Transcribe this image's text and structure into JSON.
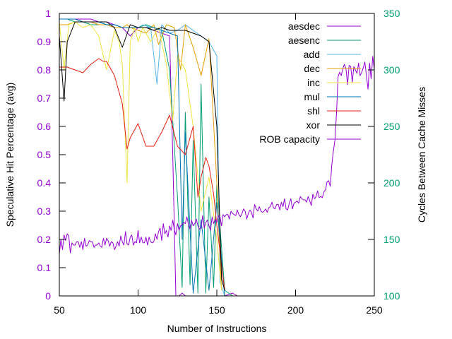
{
  "chart_data": {
    "type": "line",
    "xlabel": "Number of Instructions",
    "ylabel": "Speculative Hit Percentage (avg)",
    "y2label": "Cycles Between Cache Misses",
    "xlim": [
      50,
      250
    ],
    "ylim": [
      0,
      1
    ],
    "y2lim": [
      100,
      350
    ],
    "xticks": [
      "50",
      "100",
      "150",
      "200",
      "250"
    ],
    "yticks": [
      "0",
      "0.1",
      "0.2",
      "0.3",
      "0.4",
      "0.5",
      "0.6",
      "0.7",
      "0.8",
      "0.9",
      "1"
    ],
    "y2ticks": [
      "100",
      "150",
      "200",
      "250",
      "300",
      "350"
    ],
    "grid": false,
    "legend_position": "top-right",
    "axis_colors": {
      "left": "#9400d3",
      "right": "#009e73",
      "bottom": "#000000"
    },
    "series": [
      {
        "name": "aesdec",
        "color": "#9400d3",
        "axis": "left",
        "x": [
          50,
          55,
          60,
          65,
          70,
          75,
          80,
          85,
          90,
          95,
          100,
          105,
          110,
          115,
          120,
          122,
          124,
          126,
          128,
          130,
          135,
          140,
          145,
          150,
          155,
          160,
          163
        ],
        "y": [
          0.98,
          0.98,
          0.98,
          0.98,
          0.98,
          0.97,
          0.97,
          0.96,
          0.95,
          0.92,
          0.95,
          0.95,
          0.94,
          0.93,
          0.92,
          0.5,
          0.0,
          0.0,
          0.01,
          0.0,
          0.0,
          0.0,
          0.0,
          0.0,
          0.0,
          0.01,
          0.0
        ]
      },
      {
        "name": "aesenc",
        "color": "#009e73",
        "axis": "left",
        "x": [
          50,
          55,
          60,
          65,
          70,
          75,
          80,
          85,
          90,
          95,
          100,
          105,
          110,
          115,
          120,
          125,
          128,
          130,
          133,
          135,
          138,
          140,
          143,
          145,
          148,
          150,
          155,
          160
        ],
        "y": [
          0.98,
          0.98,
          0.97,
          0.97,
          0.96,
          0.96,
          0.96,
          0.95,
          0.95,
          0.95,
          0.95,
          0.96,
          0.95,
          0.94,
          0.8,
          0.35,
          0.03,
          0.65,
          0.04,
          0.55,
          0.01,
          0.75,
          0.01,
          0.35,
          0.03,
          0.4,
          0.02,
          0.0
        ]
      },
      {
        "name": "add",
        "color": "#56b4e9",
        "axis": "left",
        "x": [
          50,
          55,
          60,
          65,
          70,
          75,
          80,
          85,
          90,
          95,
          100,
          103,
          108,
          112,
          115,
          120,
          125,
          130,
          135,
          140,
          145,
          150,
          152,
          155
        ],
        "y": [
          0.98,
          0.98,
          0.98,
          0.97,
          0.97,
          0.97,
          0.96,
          0.96,
          0.95,
          0.95,
          0.95,
          0.96,
          0.95,
          0.75,
          0.96,
          0.93,
          0.94,
          0.96,
          0.94,
          0.92,
          0.9,
          0.85,
          0.05,
          0.0
        ]
      },
      {
        "name": "dec",
        "color": "#e69f00",
        "axis": "left",
        "x": [
          50,
          55,
          60,
          65,
          70,
          75,
          80,
          85,
          90,
          93,
          95,
          100,
          105,
          110,
          113,
          118,
          123,
          127,
          130,
          135,
          140,
          145,
          150,
          153
        ],
        "y": [
          0.96,
          0.96,
          0.97,
          0.97,
          0.97,
          0.96,
          0.96,
          0.95,
          0.95,
          0.96,
          0.95,
          0.94,
          0.93,
          0.96,
          0.89,
          0.96,
          0.95,
          0.8,
          0.96,
          0.88,
          0.78,
          0.91,
          0.4,
          0.02
        ]
      },
      {
        "name": "inc",
        "color": "#f0e442",
        "axis": "left",
        "x": [
          50,
          53,
          56,
          60,
          65,
          70,
          75,
          80,
          85,
          88,
          90,
          93,
          95,
          98,
          100,
          103,
          108,
          113,
          118,
          122,
          125,
          130,
          135,
          140,
          145,
          150,
          153
        ],
        "y": [
          0.97,
          0.8,
          0.96,
          0.97,
          0.95,
          0.96,
          0.92,
          0.8,
          0.94,
          0.9,
          0.82,
          0.4,
          0.9,
          0.95,
          0.9,
          0.95,
          0.9,
          0.95,
          0.82,
          0.62,
          0.85,
          0.8,
          0.6,
          0.3,
          0.42,
          0.2,
          0.02
        ]
      },
      {
        "name": "mul",
        "color": "#0072b2",
        "axis": "left",
        "x": [
          50,
          55,
          60,
          65,
          70,
          75,
          80,
          85,
          90,
          95,
          100,
          105,
          110,
          115,
          120,
          125,
          128,
          130,
          135,
          140,
          145,
          150,
          155
        ],
        "y": [
          0.98,
          0.98,
          0.98,
          0.97,
          0.97,
          0.97,
          0.96,
          0.96,
          0.95,
          0.95,
          0.95,
          0.95,
          0.95,
          0.94,
          0.93,
          0.92,
          0.2,
          0.58,
          0.01,
          0.27,
          0.02,
          0.33,
          0.0
        ]
      },
      {
        "name": "shl",
        "color": "#e51e10",
        "axis": "left",
        "x": [
          50,
          55,
          60,
          65,
          70,
          75,
          78,
          80,
          85,
          90,
          93,
          95,
          100,
          105,
          110,
          115,
          120,
          125,
          130,
          135,
          138,
          140,
          143,
          145,
          148,
          150,
          155
        ],
        "y": [
          0.81,
          0.81,
          0.8,
          0.79,
          0.82,
          0.84,
          0.83,
          0.83,
          0.78,
          0.68,
          0.52,
          0.56,
          0.61,
          0.53,
          0.53,
          0.58,
          0.64,
          0.53,
          0.5,
          0.6,
          0.35,
          0.42,
          0.49,
          0.46,
          0.36,
          0.25,
          0.02
        ]
      },
      {
        "name": "xor",
        "color": "#000000",
        "axis": "left",
        "x": [
          50,
          53,
          55,
          60,
          65,
          70,
          75,
          80,
          85,
          90,
          95,
          100,
          105,
          110,
          115,
          120,
          125,
          130,
          135,
          140,
          145,
          150,
          153,
          155
        ],
        "y": [
          0.92,
          0.69,
          0.9,
          0.97,
          0.97,
          0.97,
          0.97,
          0.97,
          0.95,
          0.88,
          0.96,
          0.95,
          0.95,
          0.94,
          0.95,
          0.94,
          0.94,
          0.94,
          0.93,
          0.92,
          0.9,
          0.6,
          0.06,
          0.02
        ]
      },
      {
        "name": "ROB capacity",
        "color": "#9400d3",
        "axis": "right",
        "x": [
          50,
          51,
          52,
          53,
          54,
          55,
          56,
          57,
          58,
          59,
          60,
          61,
          62,
          63,
          64,
          65,
          66,
          67,
          68,
          69,
          70,
          71,
          72,
          73,
          74,
          75,
          76,
          77,
          78,
          79,
          80,
          81,
          82,
          83,
          84,
          85,
          86,
          87,
          88,
          89,
          90,
          91,
          92,
          93,
          94,
          95,
          96,
          97,
          98,
          99,
          100,
          101,
          102,
          103,
          104,
          105,
          106,
          107,
          108,
          109,
          110,
          111,
          112,
          113,
          114,
          115,
          116,
          117,
          118,
          119,
          120,
          121,
          122,
          123,
          124,
          125,
          126,
          127,
          128,
          129,
          130,
          131,
          132,
          133,
          134,
          135,
          136,
          137,
          138,
          139,
          140,
          141,
          142,
          143,
          144,
          145,
          146,
          147,
          148,
          149,
          150,
          151,
          152,
          153,
          154,
          155,
          156,
          157,
          158,
          159,
          160,
          161,
          162,
          163,
          164,
          165,
          166,
          167,
          168,
          169,
          170,
          171,
          172,
          173,
          174,
          175,
          176,
          177,
          178,
          179,
          180,
          181,
          182,
          183,
          184,
          185,
          186,
          187,
          188,
          189,
          190,
          191,
          192,
          193,
          194,
          195,
          196,
          197,
          198,
          199,
          200,
          201,
          202,
          203,
          204,
          205,
          206,
          207,
          208,
          209,
          210,
          211,
          212,
          213,
          214,
          215,
          216,
          217,
          218,
          219,
          220,
          221,
          222,
          223,
          224,
          225,
          226,
          227,
          228,
          229,
          230,
          231,
          232,
          233,
          234,
          235,
          236,
          237,
          238,
          239,
          240,
          241,
          242,
          243,
          244,
          245,
          246,
          247,
          248,
          249,
          250
        ],
        "y": [
          137,
          150,
          141,
          154,
          149,
          155,
          153,
          138,
          147,
          145,
          145,
          148,
          148,
          143,
          148,
          141,
          151,
          144,
          145,
          149,
          148,
          148,
          143,
          145,
          145,
          147,
          144,
          143,
          151,
          145,
          151,
          149,
          144,
          148,
          147,
          141,
          144,
          148,
          144,
          153,
          148,
          145,
          157,
          146,
          145,
          152,
          154,
          145,
          148,
          147,
          158,
          147,
          152,
          147,
          147,
          152,
          145,
          152,
          148,
          147,
          148,
          155,
          150,
          157,
          160,
          149,
          164,
          155,
          158,
          152,
          162,
          158,
          167,
          159,
          154,
          164,
          158,
          162,
          163,
          165,
          164,
          170,
          163,
          159,
          167,
          162,
          164,
          168,
          162,
          159,
          160,
          171,
          160,
          165,
          167,
          162,
          158,
          170,
          164,
          168,
          165,
          171,
          170,
          162,
          172,
          170,
          172,
          172,
          168,
          175,
          173,
          172,
          171,
          176,
          172,
          170,
          173,
          177,
          175,
          168,
          173,
          176,
          174,
          169,
          181,
          177,
          175,
          179,
          175,
          174,
          175,
          177,
          174,
          178,
          179,
          183,
          178,
          177,
          181,
          181,
          176,
          183,
          179,
          186,
          177,
          176,
          182,
          186,
          177,
          182,
          183,
          184,
          182,
          188,
          186,
          185,
          185,
          183,
          188,
          184,
          180,
          190,
          186,
          188,
          193,
          187,
          188,
          187,
          192,
          194,
          201,
          202,
          197,
          216,
          228,
          238,
          262,
          294,
          298,
          295,
          301,
          305,
          301,
          287,
          304,
          303,
          289,
          303,
          300,
          297,
          306,
          295,
          298,
          302,
          307,
          295,
          283,
          306,
          292,
          312,
          300
        ]
      }
    ]
  }
}
